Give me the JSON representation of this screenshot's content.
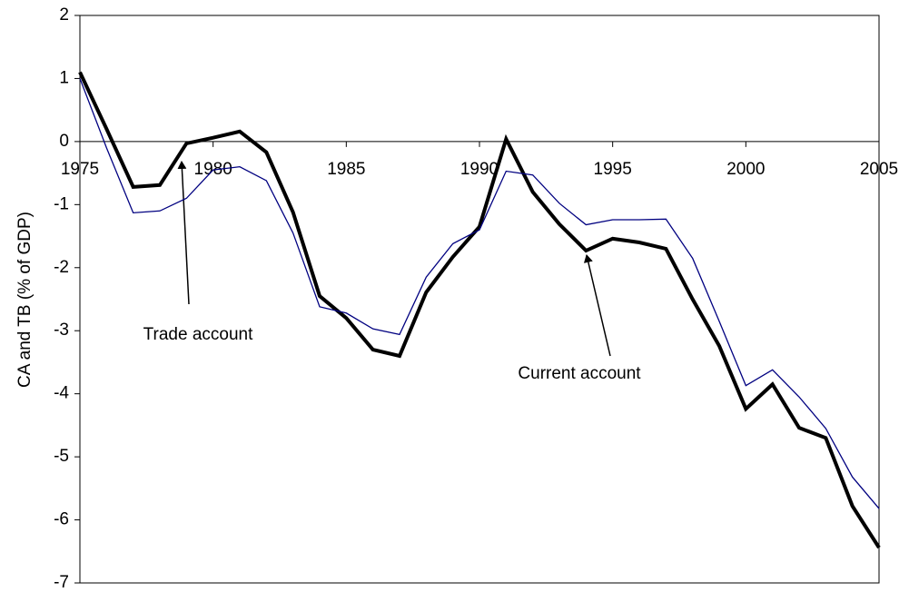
{
  "chart_data": {
    "type": "line",
    "ylabel": "CA and TB (% of GDP)",
    "x": [
      1975,
      1976,
      1977,
      1978,
      1979,
      1980,
      1981,
      1982,
      1983,
      1984,
      1985,
      1986,
      1987,
      1988,
      1989,
      1990,
      1991,
      1992,
      1993,
      1994,
      1995,
      1996,
      1997,
      1998,
      1999,
      2000,
      2001,
      2002,
      2003,
      2004,
      2005
    ],
    "series": [
      {
        "name": "Current account",
        "color": "#000000",
        "width": "thick",
        "values": [
          1.1,
          0.2,
          -0.72,
          -0.69,
          -0.03,
          0.06,
          0.16,
          -0.17,
          -1.12,
          -2.45,
          -2.8,
          -3.3,
          -3.4,
          -2.39,
          -1.83,
          -1.35,
          0.04,
          -0.8,
          -1.31,
          -1.73,
          -1.54,
          -1.6,
          -1.7,
          -2.5,
          -3.24,
          -4.24,
          -3.85,
          -4.54,
          -4.7,
          -5.78,
          -6.44
        ]
      },
      {
        "name": "Trade account",
        "color": "#000080",
        "width": "thin",
        "values": [
          1.0,
          -0.1,
          -1.13,
          -1.1,
          -0.9,
          -0.45,
          -0.4,
          -0.62,
          -1.45,
          -2.62,
          -2.72,
          -2.97,
          -3.06,
          -2.15,
          -1.62,
          -1.4,
          -0.47,
          -0.53,
          -0.98,
          -1.32,
          -1.24,
          -1.24,
          -1.23,
          -1.85,
          -2.85,
          -3.87,
          -3.62,
          -4.05,
          -4.55,
          -5.32,
          -5.82
        ]
      }
    ],
    "annotations": [
      "Trade account",
      "Current account"
    ],
    "xlim": [
      1975,
      2005
    ],
    "xticks": [
      1975,
      1980,
      1985,
      1990,
      1995,
      2000,
      2005
    ],
    "ylim": [
      -7,
      2
    ],
    "yticks": [
      -7,
      -6,
      -5,
      -4,
      -3,
      -2,
      -1,
      0,
      1,
      2
    ],
    "grid": false
  }
}
